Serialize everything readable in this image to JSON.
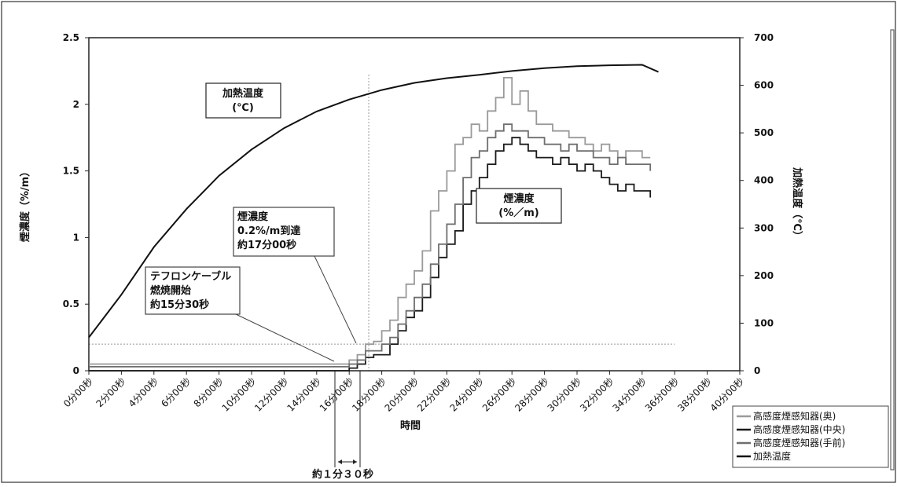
{
  "chart_data": {
    "type": "line",
    "xlabel": "時間",
    "ylabel_left": "煙濃度（%/m）",
    "ylabel_right": "加熱温度（℃）",
    "ylim_left": [
      0,
      2.5
    ],
    "yticks_left": [
      "0",
      "0.5",
      "1",
      "1.5",
      "2",
      "2.5"
    ],
    "ylim_right": [
      0,
      700
    ],
    "yticks_right": [
      "0",
      "100",
      "200",
      "300",
      "400",
      "500",
      "600",
      "700"
    ],
    "xlim_minutes": [
      0,
      40
    ],
    "xticks": [
      "0分00秒",
      "2分00秒",
      "4分00秒",
      "6分00秒",
      "8分00秒",
      "10分00秒",
      "12分00秒",
      "14分00秒",
      "16分00秒",
      "18分00秒",
      "20分00秒",
      "22分00秒",
      "24分00秒",
      "26分00秒",
      "28分00秒",
      "30分00秒",
      "32分00秒",
      "34分00秒",
      "36分00秒",
      "38分00秒",
      "40分00秒"
    ],
    "grid": false,
    "legend_position": "bottom-right",
    "series": [
      {
        "name": "高感度煙感知器(奥)",
        "axis": "left",
        "color": "#9a9a9a",
        "x_minutes": [
          0,
          10,
          15.5,
          16,
          16.5,
          17,
          17.5,
          18,
          18.5,
          19,
          19.5,
          20,
          20.5,
          21,
          21.5,
          22,
          22.5,
          23,
          23.5,
          24,
          24.5,
          25,
          25.5,
          26,
          26.5,
          27,
          27.5,
          28,
          28.5,
          29,
          29.5,
          30,
          30.5,
          31,
          31.5,
          32,
          32.5,
          33,
          33.5,
          34,
          34.5
        ],
        "values": [
          0.05,
          0.05,
          0.05,
          0.08,
          0.12,
          0.2,
          0.22,
          0.3,
          0.38,
          0.55,
          0.65,
          0.75,
          0.9,
          1.2,
          1.35,
          1.5,
          1.7,
          1.75,
          1.85,
          1.8,
          1.95,
          2.05,
          2.2,
          2.0,
          2.1,
          1.95,
          1.85,
          1.85,
          1.8,
          1.8,
          1.75,
          1.75,
          1.7,
          1.65,
          1.7,
          1.65,
          1.6,
          1.65,
          1.65,
          1.6,
          1.6
        ]
      },
      {
        "name": "高感度煙感知器(中央)",
        "axis": "left",
        "color": "#1a1a1a",
        "x_minutes": [
          0,
          10,
          16,
          16.5,
          17,
          17.5,
          18,
          18.5,
          19,
          19.5,
          20,
          20.5,
          21,
          21.5,
          22,
          22.5,
          23,
          23.5,
          24,
          24.5,
          25,
          25.5,
          26,
          26.5,
          27,
          27.5,
          28,
          28.5,
          29,
          29.5,
          30,
          30.5,
          31,
          31.5,
          32,
          32.5,
          33,
          33.5,
          34,
          34.5
        ],
        "values": [
          0,
          0,
          0.02,
          0.05,
          0.1,
          0.12,
          0.12,
          0.2,
          0.3,
          0.4,
          0.45,
          0.55,
          0.7,
          0.85,
          0.95,
          1.05,
          1.25,
          1.35,
          1.45,
          1.55,
          1.65,
          1.7,
          1.75,
          1.7,
          1.65,
          1.6,
          1.6,
          1.55,
          1.6,
          1.55,
          1.5,
          1.55,
          1.5,
          1.45,
          1.4,
          1.35,
          1.4,
          1.35,
          1.35,
          1.3
        ]
      },
      {
        "name": "高感度煙感知器(手前)",
        "axis": "left",
        "color": "#6e6e6e",
        "x_minutes": [
          0,
          10,
          16,
          16.5,
          17,
          17.5,
          18,
          18.5,
          19,
          19.5,
          20,
          20.5,
          21,
          21.5,
          22,
          22.5,
          23,
          23.5,
          24,
          24.5,
          25,
          25.5,
          26,
          26.5,
          27,
          27.5,
          28,
          28.5,
          29,
          29.5,
          30,
          30.5,
          31,
          31.5,
          32,
          32.5,
          33,
          33.5,
          34,
          34.5
        ],
        "values": [
          0.03,
          0.03,
          0.05,
          0.08,
          0.15,
          0.15,
          0.2,
          0.25,
          0.35,
          0.45,
          0.55,
          0.65,
          0.8,
          0.95,
          1.1,
          1.25,
          1.45,
          1.6,
          1.65,
          1.75,
          1.8,
          1.85,
          1.8,
          1.8,
          1.75,
          1.75,
          1.7,
          1.7,
          1.65,
          1.7,
          1.65,
          1.65,
          1.6,
          1.6,
          1.55,
          1.6,
          1.55,
          1.55,
          1.55,
          1.5
        ]
      },
      {
        "name": "加熱温度",
        "axis": "right",
        "color": "#111111",
        "x_minutes": [
          0,
          2,
          4,
          6,
          8,
          10,
          12,
          14,
          16,
          18,
          20,
          22,
          24,
          26,
          28,
          30,
          32,
          34,
          35
        ],
        "values": [
          70,
          160,
          260,
          340,
          410,
          465,
          510,
          545,
          570,
          590,
          605,
          615,
          622,
          630,
          636,
          640,
          642,
          643,
          628
        ]
      }
    ],
    "annotations": [
      {
        "title": "加熱温度",
        "subtitle": "(℃)"
      },
      {
        "title": "煙濃度",
        "subtitle": "(%／m)"
      },
      {
        "lines": [
          "煙濃度",
          "0.2%/m到達",
          "約17分00秒"
        ]
      },
      {
        "lines": [
          "テフロンケーブル",
          "燃焼開始",
          "約15分30秒"
        ]
      },
      {
        "text": "約１分３０秒"
      }
    ]
  }
}
